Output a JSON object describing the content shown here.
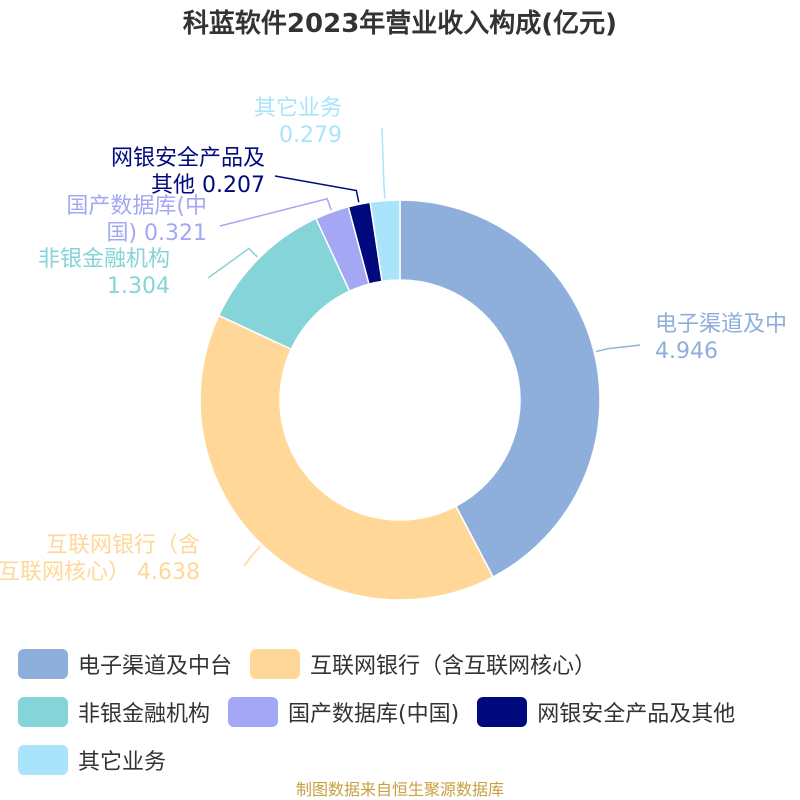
{
  "chart_data": {
    "type": "pie",
    "title": "科蓝软件2023年营业收入构成(亿元)",
    "unit": "亿元",
    "slices": [
      {
        "name": "电子渠道及中台",
        "label_lines": [
          "电子渠道及中",
          "4.946"
        ],
        "value": 4.946,
        "color": "#8eaedb"
      },
      {
        "name": "互联网银行（含互联网核心）",
        "label_lines": [
          "互联网银行（含",
          "互联网核心） 4.638"
        ],
        "value": 4.638,
        "color": "#ffd899"
      },
      {
        "name": "非银金融机构",
        "label_lines": [
          "非银金融机构",
          "1.304"
        ],
        "value": 1.304,
        "color": "#85d4d8"
      },
      {
        "name": "国产数据库(中国)",
        "label_lines": [
          "国产数据库(中",
          "国) 0.321"
        ],
        "value": 0.321,
        "color": "#a3a7f4"
      },
      {
        "name": "网银安全产品及其他",
        "label_lines": [
          "网银安全产品及",
          "其他 0.207"
        ],
        "value": 0.207,
        "color": "#000a7e"
      },
      {
        "name": "其它业务",
        "label_lines": [
          "其它业务",
          "0.279"
        ],
        "value": 0.279,
        "color": "#a9e4fb"
      }
    ]
  },
  "source": "制图数据来自恒生聚源数据库"
}
